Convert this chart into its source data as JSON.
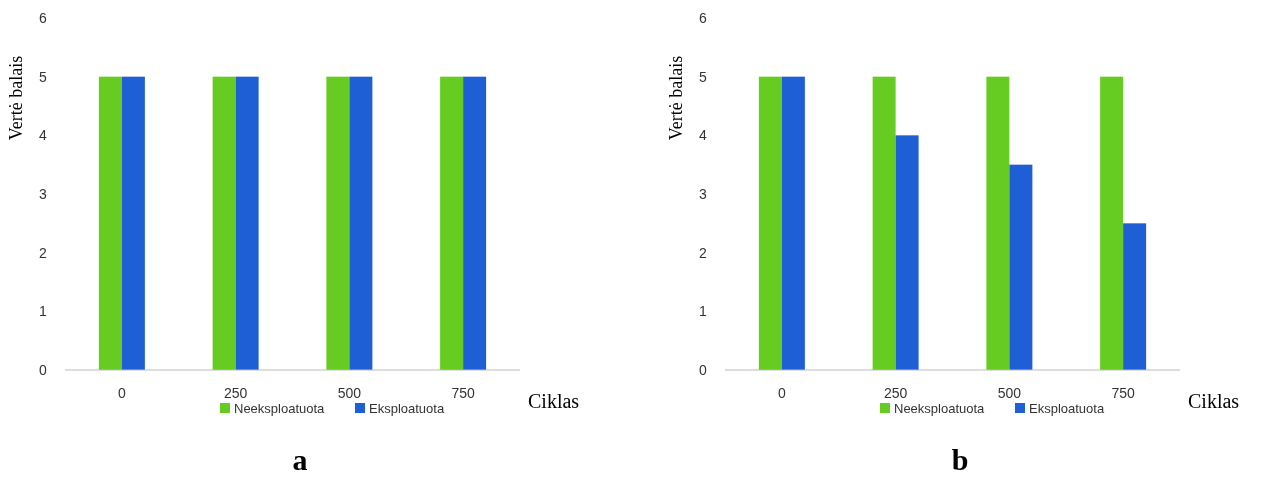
{
  "chart_data": [
    {
      "type": "bar",
      "categories": [
        "0",
        "250",
        "500",
        "750"
      ],
      "series": [
        {
          "name": "Neeksploatuota",
          "color": "#66cc22",
          "values": [
            5,
            5,
            5,
            5
          ]
        },
        {
          "name": "Eksploatuota",
          "color": "#1f5fd6",
          "values": [
            5,
            5,
            5,
            5
          ]
        }
      ],
      "ylim": [
        0,
        6
      ],
      "yticks": [
        0,
        1,
        2,
        3,
        4,
        5,
        6
      ],
      "xlabel": "Ciklas",
      "ylabel": "Vertė balais",
      "legend": "bottom",
      "grid": false,
      "annotations": [
        "a"
      ]
    },
    {
      "type": "bar",
      "categories": [
        "0",
        "250",
        "500",
        "750"
      ],
      "series": [
        {
          "name": "Neeksploatuota",
          "color": "#66cc22",
          "values": [
            5,
            5,
            5,
            5
          ]
        },
        {
          "name": "Eksploatuota",
          "color": "#1f5fd6",
          "values": [
            5,
            4,
            3.5,
            2.5
          ]
        }
      ],
      "ylim": [
        0,
        6
      ],
      "yticks": [
        0,
        1,
        2,
        3,
        4,
        5,
        6
      ],
      "xlabel": "Ciklas",
      "ylabel": "Vertė balais",
      "legend": "bottom",
      "grid": false,
      "annotations": [
        "b"
      ]
    }
  ]
}
